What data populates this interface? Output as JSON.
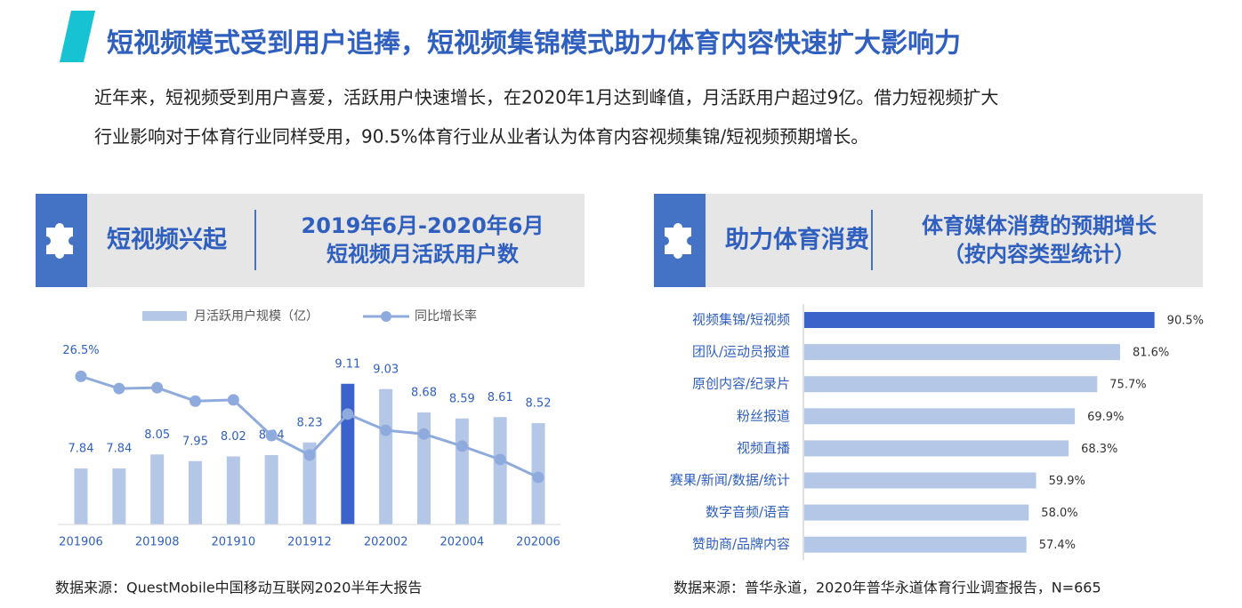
{
  "header": {
    "title": "短视频模式受到用户追捧，短视频集锦模式助力体育内容快速扩大影响力",
    "paragraph": [
      "近年来，短视频受到用户喜爱，活跃用户快速增长，在2020年1月达到峰值，月活跃用户超过9亿。借力短视频扩大",
      "行业影响对于体育行业同样受用，90.5%体育行业从业者认为体育内容视频集锦/短视频预期增长。"
    ]
  },
  "chart_data": [
    {
      "type": "bar_line",
      "panel_title": "短视频兴起",
      "title": [
        "2019年6月-2020年6月",
        "短视频月活跃用户数"
      ],
      "categories": [
        "201906",
        null,
        "201908",
        null,
        "201910",
        null,
        "201912",
        null,
        "202002",
        null,
        "202004",
        null,
        "202006"
      ],
      "series": [
        {
          "name": "月活跃用户规模（亿）",
          "type": "bar",
          "color": "#b4c7e7",
          "colors": [
            "#b4c7e7",
            "#b4c7e7",
            "#b4c7e7",
            "#b4c7e7",
            "#b4c7e7",
            "#b4c7e7",
            "#b4c7e7",
            "#3b63c9",
            "#b4c7e7",
            "#b4c7e7",
            "#b4c7e7",
            "#b4c7e7",
            "#b4c7e7"
          ],
          "values": [
            7.84,
            7.84,
            8.05,
            7.95,
            8.02,
            8.04,
            8.23,
            9.11,
            9.03,
            8.68,
            8.59,
            8.61,
            8.52
          ]
        },
        {
          "name": "同比增长率",
          "type": "line",
          "axis": "y2",
          "color": "#8faadc",
          "values": [
            26.5,
            23.5,
            23.7,
            20.4,
            20.7,
            11.9,
            7.1,
            17.2,
            13.2,
            12.3,
            9.3,
            6.0,
            1.6
          ],
          "value_labels": [
            "26.5%",
            null,
            null,
            null,
            null,
            null,
            null,
            null,
            null,
            null,
            null,
            null,
            null
          ]
        }
      ],
      "ylim": [
        7,
        9.8
      ],
      "y2lim": [
        -10,
        36
      ],
      "source": "数据来源：QuestMobile中国移动互联网2020半年大报告"
    },
    {
      "type": "hbar",
      "panel_title": "助力体育消费",
      "title": [
        "体育媒体消费的预期增长",
        "（按内容类型统计）"
      ],
      "categories": [
        "视频集锦/短视频",
        "团队/运动员报道",
        "原创内容/纪录片",
        "粉丝报道",
        "视频直播",
        "赛果/新闻/数据/统计",
        "数字音频/语音",
        "赞助商/品牌内容"
      ],
      "values": [
        90.5,
        81.6,
        75.7,
        69.9,
        68.3,
        59.9,
        58.0,
        57.4
      ],
      "value_labels": [
        "90.5%",
        "81.6%",
        "75.7%",
        "69.9%",
        "68.3%",
        "59.9%",
        "58.0%",
        "57.4%"
      ],
      "colors": [
        "#3b63c9",
        "#b4c7e7",
        "#b4c7e7",
        "#b4c7e7",
        "#b4c7e7",
        "#b4c7e7",
        "#b4c7e7",
        "#b4c7e7"
      ],
      "xlim": [
        0,
        100
      ],
      "source": "数据来源：普华永道，2020年普华永道体育行业调查报告，N=665"
    }
  ]
}
